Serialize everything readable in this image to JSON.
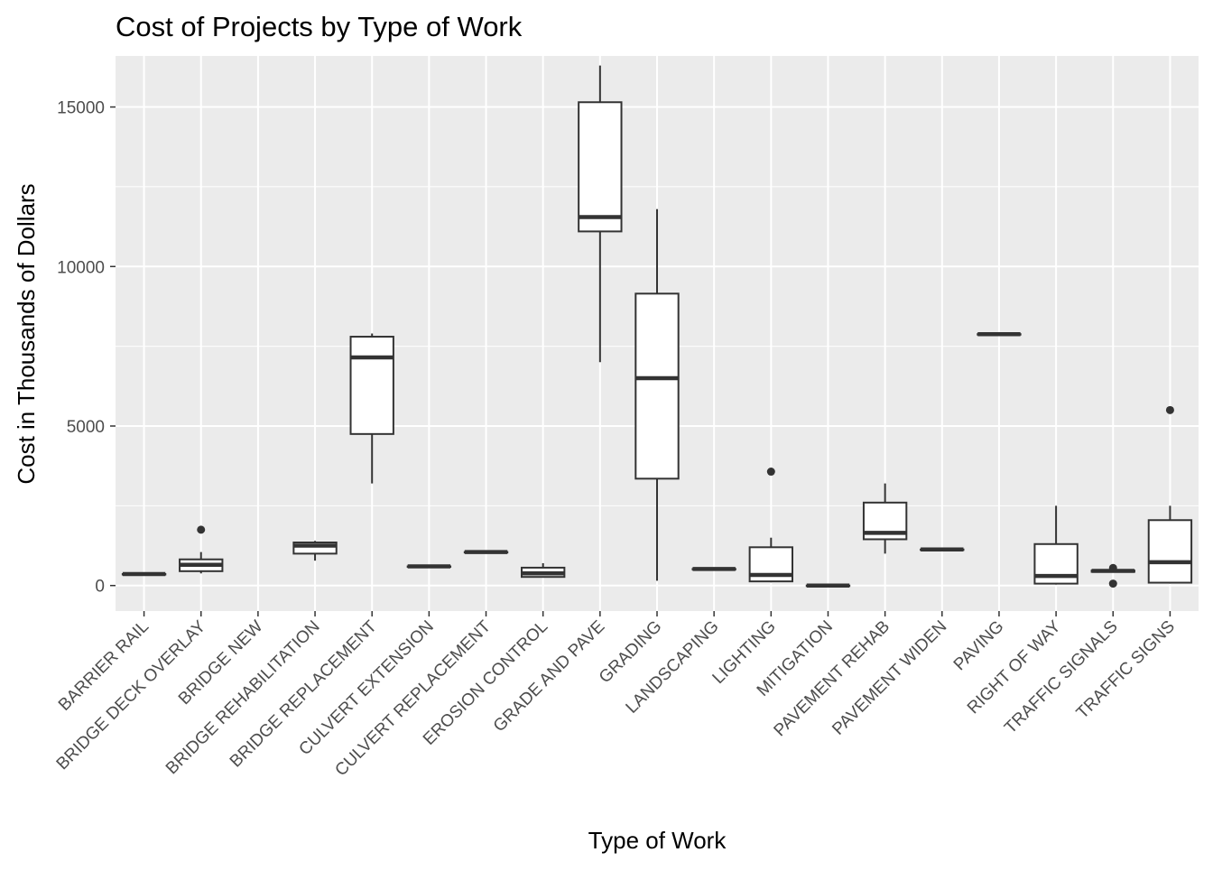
{
  "chart_data": {
    "type": "boxplot",
    "title": "Cost of Projects by Type of Work",
    "xlabel": "Type of Work",
    "ylabel": "Cost in Thousands of Dollars",
    "ylim": [
      -800,
      16600
    ],
    "yticks": [
      0,
      5000,
      10000,
      15000
    ],
    "grid": true,
    "legend": "none",
    "colors": {
      "panel_background": "#ebebeb",
      "grid": "#ffffff",
      "box_fill": "#ffffff",
      "box_line": "#333333",
      "text": "#000000",
      "tick_text": "#4d4d4d"
    },
    "categories": [
      "BARRIER RAIL",
      "BRIDGE DECK OVERLAY",
      "BRIDGE NEW",
      "BRIDGE REHABILITATION",
      "BRIDGE REPLACEMENT",
      "CULVERT EXTENSION",
      "CULVERT REPLACEMENT",
      "EROSION CONTROL",
      "GRADE AND PAVE",
      "GRADING",
      "LANDSCAPING",
      "LIGHTING",
      "MITIGATION",
      "PAVEMENT REHAB",
      "PAVEMENT WIDEN",
      "PAVING",
      "RIGHT OF WAY",
      "TRAFFIC SIGNALS",
      "TRAFFIC SIGNS"
    ],
    "boxes": [
      {
        "category": "BARRIER RAIL",
        "min": 360,
        "q1": 360,
        "median": 360,
        "q3": 360,
        "max": 360,
        "outliers": []
      },
      {
        "category": "BRIDGE DECK OVERLAY",
        "min": 380,
        "q1": 450,
        "median": 650,
        "q3": 820,
        "max": 1050,
        "outliers": [
          1750
        ]
      },
      {
        "category": "BRIDGE NEW",
        "min": null,
        "q1": null,
        "median": null,
        "q3": null,
        "max": null,
        "outliers": []
      },
      {
        "category": "BRIDGE REHABILITATION",
        "min": 780,
        "q1": 1000,
        "median": 1250,
        "q3": 1350,
        "max": 1400,
        "outliers": []
      },
      {
        "category": "BRIDGE REPLACEMENT",
        "min": 3200,
        "q1": 4750,
        "median": 7150,
        "q3": 7800,
        "max": 7900,
        "outliers": []
      },
      {
        "category": "CULVERT EXTENSION",
        "min": 600,
        "q1": 600,
        "median": 600,
        "q3": 600,
        "max": 600,
        "outliers": []
      },
      {
        "category": "CULVERT REPLACEMENT",
        "min": 1050,
        "q1": 1050,
        "median": 1050,
        "q3": 1050,
        "max": 1050,
        "outliers": []
      },
      {
        "category": "EROSION CONTROL",
        "min": 250,
        "q1": 270,
        "median": 380,
        "q3": 560,
        "max": 700,
        "outliers": []
      },
      {
        "category": "GRADE AND PAVE",
        "min": 7000,
        "q1": 11100,
        "median": 11550,
        "q3": 15150,
        "max": 16300,
        "outliers": []
      },
      {
        "category": "GRADING",
        "min": 150,
        "q1": 3350,
        "median": 6500,
        "q3": 9150,
        "max": 11800,
        "outliers": []
      },
      {
        "category": "LANDSCAPING",
        "min": 520,
        "q1": 520,
        "median": 520,
        "q3": 520,
        "max": 520,
        "outliers": []
      },
      {
        "category": "LIGHTING",
        "min": 100,
        "q1": 130,
        "median": 330,
        "q3": 1200,
        "max": 1500,
        "outliers": [
          3570
        ]
      },
      {
        "category": "MITIGATION",
        "min": 0,
        "q1": 0,
        "median": 0,
        "q3": 0,
        "max": 0,
        "outliers": []
      },
      {
        "category": "PAVEMENT REHAB",
        "min": 1000,
        "q1": 1450,
        "median": 1650,
        "q3": 2600,
        "max": 3200,
        "outliers": []
      },
      {
        "category": "PAVEMENT WIDEN",
        "min": 1130,
        "q1": 1130,
        "median": 1130,
        "q3": 1130,
        "max": 1130,
        "outliers": []
      },
      {
        "category": "PAVING",
        "min": 7880,
        "q1": 7880,
        "median": 7880,
        "q3": 7880,
        "max": 7880,
        "outliers": []
      },
      {
        "category": "RIGHT OF WAY",
        "min": 30,
        "q1": 60,
        "median": 300,
        "q3": 1300,
        "max": 2500,
        "outliers": []
      },
      {
        "category": "TRAFFIC SIGNALS",
        "min": 420,
        "q1": 430,
        "median": 460,
        "q3": 470,
        "max": 480,
        "outliers": [
          550,
          60
        ]
      },
      {
        "category": "TRAFFIC SIGNS",
        "min": 60,
        "q1": 90,
        "median": 730,
        "q3": 2050,
        "max": 2500,
        "outliers": [
          5500
        ]
      }
    ]
  }
}
